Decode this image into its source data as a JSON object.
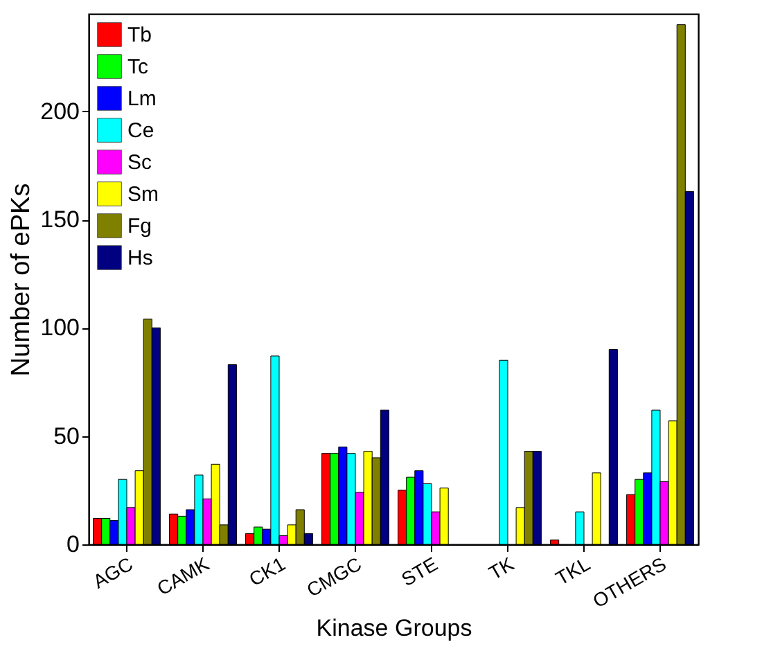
{
  "chart_data": {
    "type": "bar",
    "xlabel": "Kinase Groups",
    "ylabel": "Number of ePKs",
    "categories": [
      "AGC",
      "CAMK",
      "CK1",
      "CMGC",
      "STE",
      "TK",
      "TKL",
      "OTHERS"
    ],
    "series": [
      {
        "name": "Tb",
        "color": "#ff0000",
        "values": [
          12,
          14,
          5,
          42,
          25,
          0,
          2,
          23
        ]
      },
      {
        "name": "Tc",
        "color": "#00ff00",
        "values": [
          12,
          13,
          8,
          42,
          31,
          0,
          0,
          30
        ]
      },
      {
        "name": "Lm",
        "color": "#0000ff",
        "values": [
          11,
          16,
          7,
          45,
          34,
          0,
          0,
          33
        ]
      },
      {
        "name": "Ce",
        "color": "#00ffff",
        "values": [
          30,
          32,
          87,
          42,
          28,
          85,
          15,
          62
        ]
      },
      {
        "name": "Sc",
        "color": "#ff00ff",
        "values": [
          17,
          21,
          4,
          24,
          15,
          0,
          0,
          29
        ]
      },
      {
        "name": "Sm",
        "color": "#ffff00",
        "values": [
          34,
          37,
          9,
          43,
          26,
          17,
          33,
          57
        ]
      },
      {
        "name": "Fg",
        "color": "#808000",
        "values": [
          104,
          9,
          16,
          40,
          0,
          43,
          0,
          240
        ]
      },
      {
        "name": "Hs",
        "color": "#000080",
        "values": [
          100,
          83,
          5,
          62,
          0,
          43,
          90,
          163
        ]
      }
    ],
    "ylim": [
      0,
      245
    ],
    "yticks": [
      0,
      50,
      100,
      150,
      200
    ],
    "grid": false,
    "legend": "top left"
  }
}
